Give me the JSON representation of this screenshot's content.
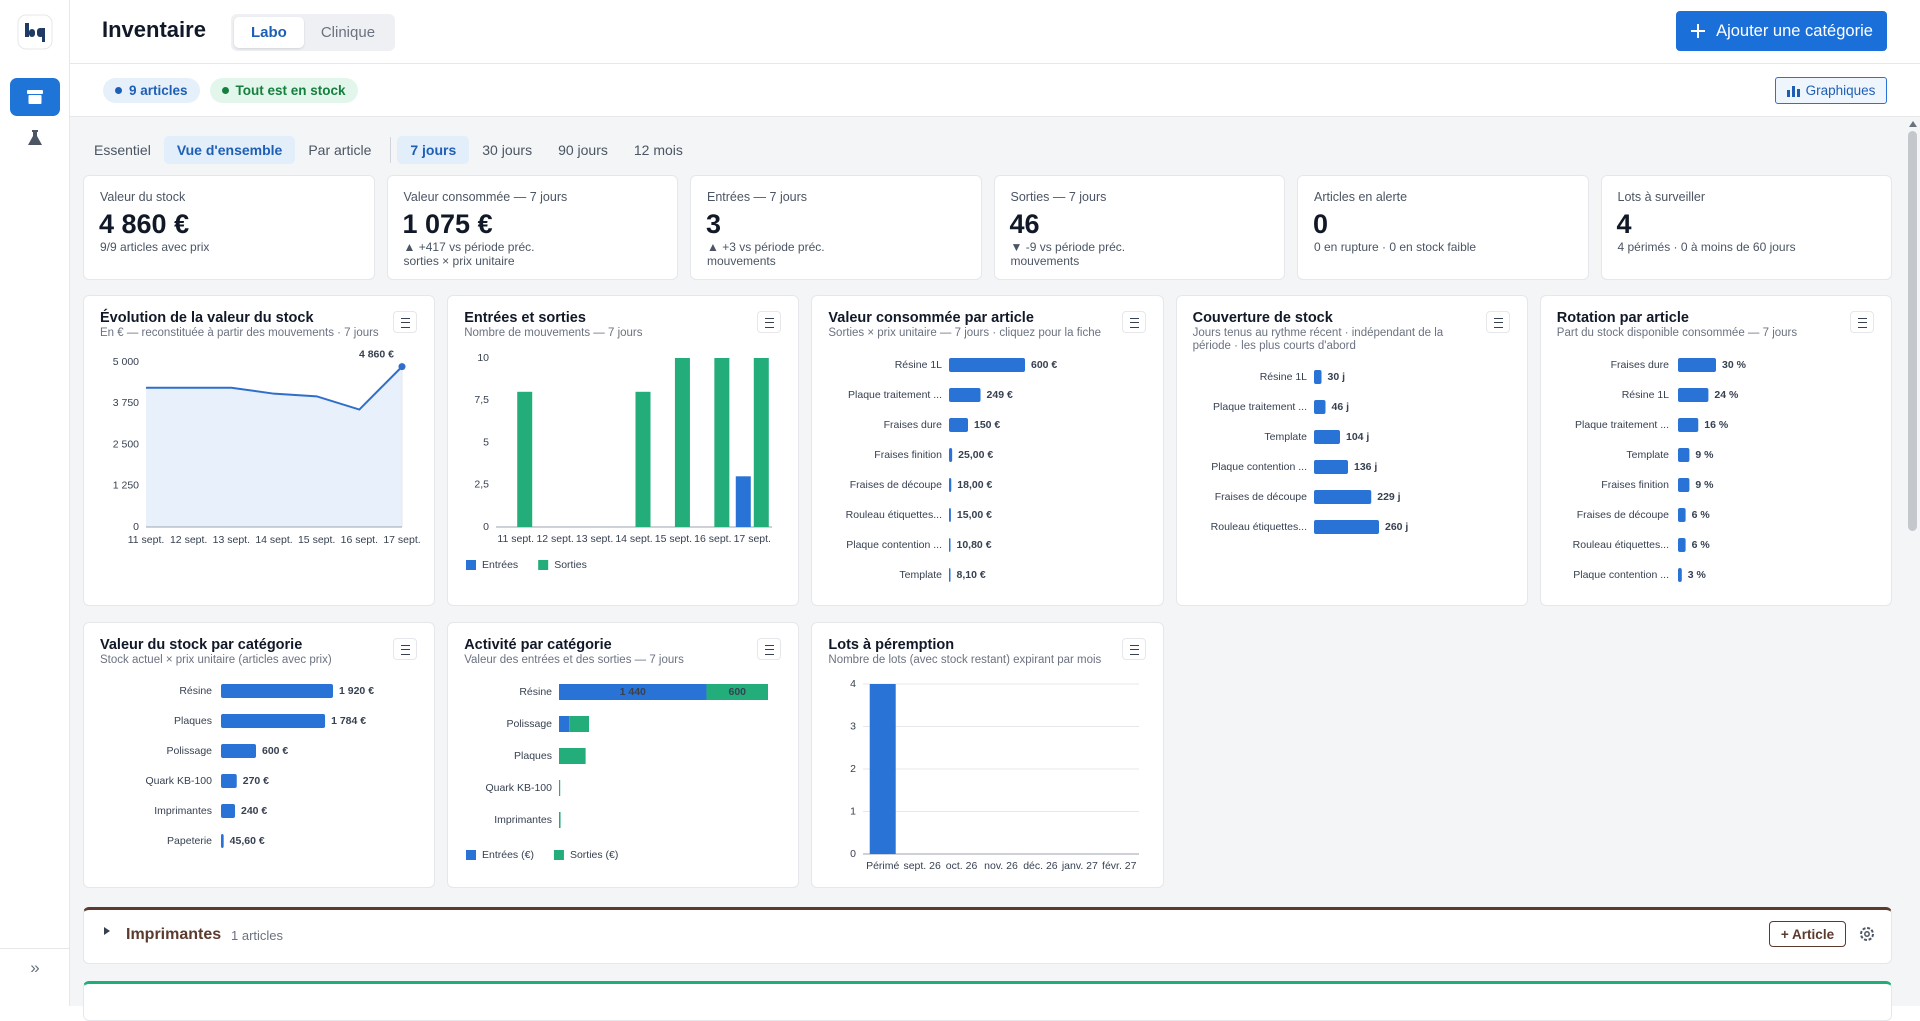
{
  "sidebar": {
    "expand": "»"
  },
  "header": {
    "title": "Inventaire",
    "tabs": [
      "Labo",
      "Clinique"
    ],
    "add_button": "Ajouter une catégorie"
  },
  "toolbar": {
    "chips": [
      "9 articles",
      "Tout est en stock"
    ],
    "charts_button": "Graphiques"
  },
  "views": [
    "Essentiel",
    "Vue d'ensemble",
    "Par article"
  ],
  "periods": [
    "7 jours",
    "30 jours",
    "90 jours",
    "12 mois"
  ],
  "kpis": [
    {
      "label": "Valeur du stock",
      "value": "4 860 €",
      "notes": [
        "9/9 articles avec prix"
      ]
    },
    {
      "label": "Valeur consommée — 7 jours",
      "value": "1 075 €",
      "notes": [
        "▲ +417 vs période préc.",
        "sorties × prix unitaire"
      ]
    },
    {
      "label": "Entrées — 7 jours",
      "value": "3",
      "notes": [
        "▲ +3 vs période préc.",
        "mouvements"
      ]
    },
    {
      "label": "Sorties — 7 jours",
      "value": "46",
      "notes": [
        "▼ -9 vs période préc.",
        "mouvements"
      ]
    },
    {
      "label": "Articles en alerte",
      "value": "0",
      "notes": [
        "0 en rupture · 0 en stock faible"
      ]
    },
    {
      "label": "Lots à surveiller",
      "value": "4",
      "notes": [
        "4 périmés · 0 à moins de 60 jours"
      ]
    }
  ],
  "chart_data": [
    {
      "type": "line",
      "title": "Évolution de la valeur du stock",
      "subtitle": "En € — reconstituée à partir des mouvements · 7 jours",
      "categories": [
        "11 sept.",
        "12 sept.",
        "13 sept.",
        "14 sept.",
        "15 sept.",
        "16 sept.",
        "17 sept."
      ],
      "values": [
        4220,
        4220,
        4220,
        4040,
        3960,
        3560,
        4860
      ],
      "value_labels": [
        null,
        null,
        null,
        null,
        null,
        null,
        "4 860 €"
      ],
      "color": "#2f6fc9",
      "ylim": [
        0,
        5000
      ],
      "yticks": [
        0,
        {
          "value": 1250,
          "label": "1 250"
        },
        {
          "value": 2500,
          "label": "2 500"
        },
        {
          "value": 3750,
          "label": "3 750"
        },
        {
          "value": 5000,
          "label": "5 000"
        }
      ],
      "grid": false
    },
    {
      "type": "bar",
      "title": "Entrées et sorties",
      "subtitle": "Nombre de mouvements — 7 jours",
      "categories": [
        "11 sept.",
        "12 sept.",
        "13 sept.",
        "14 sept.",
        "15 sept.",
        "16 sept.",
        "17 sept."
      ],
      "series": [
        {
          "name": "Entrées",
          "color": "#2a73d6",
          "values": [
            0,
            0,
            0,
            0,
            0,
            0,
            3
          ]
        },
        {
          "name": "Sorties",
          "color": "#22ad7a",
          "values": [
            8,
            0,
            0,
            8,
            10,
            10,
            10
          ]
        }
      ],
      "ylim": [
        0,
        10
      ],
      "yticks": [
        0,
        {
          "value": 2.5,
          "label": "2,5"
        },
        5,
        {
          "value": 7.5,
          "label": "7,5"
        },
        10
      ],
      "grid": false
    },
    {
      "type": "hbar",
      "title": "Valeur consommée par article",
      "subtitle": "Sorties × prix unitaire — 7 jours · cliquez pour la fiche",
      "categories": [
        "Résine 1L",
        "Plaque traitement ...",
        "Fraises dure",
        "Fraises finition",
        "Fraises de découpe",
        "Rouleau étiquettes...",
        "Plaque contention ...",
        "Template"
      ],
      "values": [
        600,
        249,
        150,
        25,
        18,
        15,
        10.8,
        8.1
      ],
      "value_labels": [
        "600 €",
        "249 €",
        "150 €",
        "25,00 €",
        "18,00 €",
        "15,00 €",
        "10,80 €",
        "8,10 €"
      ],
      "color": "#2a73d6"
    },
    {
      "type": "hbar",
      "title": "Couverture de stock",
      "subtitle": "Jours tenus au rythme récent · indépendant de la période · les plus courts d'abord",
      "categories": [
        "Résine 1L",
        "Plaque traitement ...",
        "Template",
        "Plaque contention ...",
        "Fraises de découpe",
        "Rouleau étiquettes..."
      ],
      "values": [
        30,
        46,
        104,
        136,
        229,
        260
      ],
      "value_labels": [
        "30 j",
        "46 j",
        "104 j",
        "136 j",
        "229 j",
        "260 j"
      ],
      "color": "#2a73d6"
    },
    {
      "type": "hbar",
      "title": "Rotation par article",
      "subtitle": "Part du stock disponible consommée — 7 jours",
      "categories": [
        "Fraises dure",
        "Résine 1L",
        "Plaque traitement ...",
        "Template",
        "Fraises finition",
        "Fraises de découpe",
        "Rouleau étiquettes...",
        "Plaque contention ..."
      ],
      "values": [
        30,
        24,
        16,
        9,
        9,
        6,
        6,
        3
      ],
      "value_labels": [
        "30 %",
        "24 %",
        "16 %",
        "9 %",
        "9 %",
        "6 %",
        "6 %",
        "3 %"
      ],
      "color": "#2a73d6"
    },
    {
      "type": "hbar",
      "title": "Valeur du stock par catégorie",
      "subtitle": "Stock actuel × prix unitaire (articles avec prix)",
      "categories": [
        "Résine",
        "Plaques",
        "Polissage",
        "Quark KB-100",
        "Imprimantes",
        "Papeterie"
      ],
      "values": [
        1920,
        1784,
        600,
        270,
        240,
        45.6
      ],
      "value_labels": [
        "1 920 €",
        "1 784 €",
        "600 €",
        "270 €",
        "240 €",
        "45,60 €"
      ],
      "color": "#2a73d6"
    },
    {
      "type": "stacked-hbar",
      "title": "Activité par catégorie",
      "subtitle": "Valeur des entrées et des sorties — 7 jours",
      "categories": [
        "Résine",
        "Polissage",
        "Plaques",
        "Quark KB-100",
        "Imprimantes"
      ],
      "series": [
        {
          "name": "Entrées (€)",
          "color": "#2a73d6",
          "values": [
            1440,
            100,
            0,
            0,
            0
          ],
          "value_labels": [
            "1 440",
            null,
            null,
            null,
            null
          ]
        },
        {
          "name": "Sorties (€)",
          "color": "#22ad7a",
          "values": [
            600,
            193,
            259.8,
            8.1,
            15
          ]
        }
      ]
    },
    {
      "type": "bar",
      "title": "Lots à péremption",
      "subtitle": "Nombre de lots (avec stock restant) expirant par mois",
      "categories": [
        "Périmé",
        "sept. 26",
        "oct. 26",
        "nov. 26",
        "déc. 26",
        "janv. 27",
        "févr. 27"
      ],
      "values": [
        4,
        0,
        0,
        0,
        0,
        0,
        0
      ],
      "color": "#2a73d6",
      "ylim": [
        0,
        4
      ],
      "yticks": [
        0,
        1,
        2,
        3,
        4
      ],
      "grid": true
    }
  ],
  "sections": [
    {
      "name": "Imprimantes",
      "count": "1 articles",
      "button": "+ Article"
    }
  ]
}
